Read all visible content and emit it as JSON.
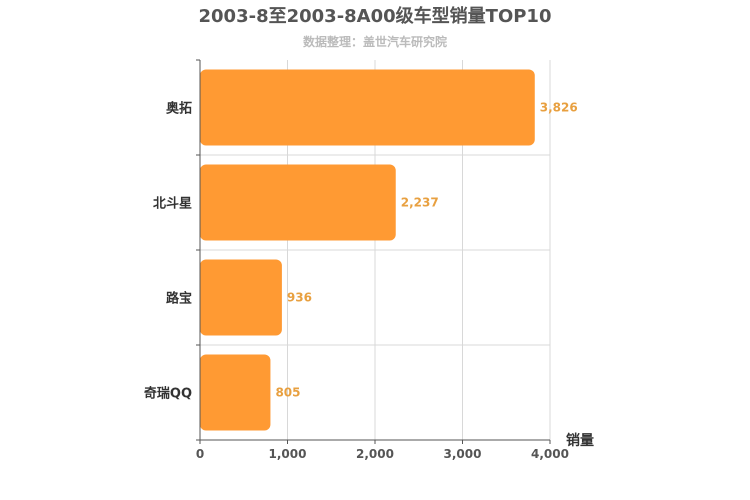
{
  "chart_data": {
    "type": "bar",
    "orientation": "horizontal",
    "title": "2003-8至2003-8A00级车型销量TOP10",
    "subtitle": "数据整理：盖世汽车研究院",
    "categories": [
      "奥拓",
      "北斗星",
      "路宝",
      "奇瑞QQ"
    ],
    "values": [
      3826,
      2237,
      936,
      805
    ],
    "value_labels": [
      "3,826",
      "2,237",
      "936",
      "805"
    ],
    "xlabel": "销量",
    "ylabel": "",
    "xlim": [
      0,
      4000
    ],
    "xticks": [
      0,
      1000,
      2000,
      3000,
      4000
    ],
    "xtick_labels": [
      "0",
      "1,000",
      "2,000",
      "3,000",
      "4,000"
    ],
    "grid": true,
    "colors": {
      "bar": "#ff9a33",
      "value_label": "#e8a040",
      "grid": "#d8d8d8",
      "axis": "#555555"
    }
  }
}
